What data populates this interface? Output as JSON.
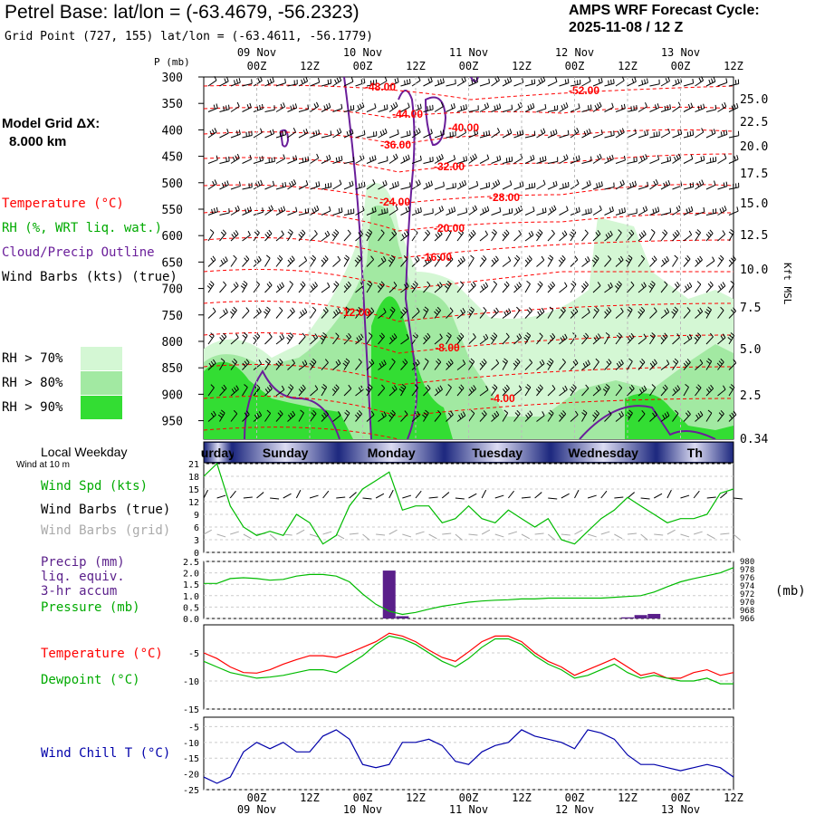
{
  "header": {
    "title": "Petrel Base:  lat/lon = (-63.4679, -56.2323)",
    "grid_point": "Grid Point (727, 155) lat/lon = (-63.4611, -56.1779)",
    "cycle_line1": "AMPS WRF Forecast Cycle:",
    "cycle_line2": "2025-11-08 / 12  Z",
    "model_grid_line1": "Model Grid ΔX:",
    "model_grid_line2": "8.000 km"
  },
  "legend": {
    "temperature": "Temperature (°C)",
    "rh": "RH (%, WRT liq. wat.)",
    "cloud": "Cloud/Precip Outline",
    "wind": "Wind Barbs (kts) (true)",
    "rh70": "RH > 70%",
    "rh80": "RH > 80%",
    "rh90": "RH > 90%"
  },
  "colors": {
    "temperature": "#ff0000",
    "rh_label": "#00aa00",
    "cloud": "#6a1e9a",
    "rh70": "#d4f7d4",
    "rh80": "#a2e9a2",
    "rh90": "#33dd33",
    "wind_chill": "#0000aa",
    "pressure": "#00bb00",
    "precip": "#5a1f8a",
    "barbs_grid": "#aaaaaa",
    "day_band_dark": "#1f2a80",
    "day_band_light": "#dcdcf2"
  },
  "time_axis": {
    "top_date_labels": [
      "09 Nov",
      "10 Nov",
      "11 Nov",
      "12 Nov",
      "13 Nov"
    ],
    "hour_labels": [
      "00Z",
      "12Z",
      "00Z",
      "12Z",
      "00Z",
      "12Z",
      "00Z",
      "12Z",
      "00Z",
      "12Z"
    ],
    "bottom_date_labels": [
      "09 Nov",
      "10 Nov",
      "11 Nov",
      "12 Nov",
      "13 Nov"
    ],
    "weekday_title": "Local Weekday",
    "weekdays": [
      "urday",
      "Sunday",
      "Monday",
      "Tuesday",
      "Wednesday",
      "Th"
    ]
  },
  "panels": {
    "sounding": {
      "p_label": "P (mb)",
      "pressure_ticks": [
        "300",
        "350",
        "400",
        "450",
        "500",
        "550",
        "600",
        "650",
        "700",
        "750",
        "800",
        "850",
        "900",
        "950"
      ],
      "kft_ticks": [
        "25.0",
        "22.5",
        "20.0",
        "17.5",
        "15.0",
        "12.5",
        "10.0",
        "7.5",
        "5.0",
        "2.5",
        "0.34"
      ],
      "kft_label": "Kft MSL",
      "temp_labels": [
        "-48.00",
        "-52.00",
        "-44.00",
        "-40.00",
        "-36.00",
        "-32.00",
        "-28.00",
        "-24.00",
        "-20.00",
        "-16.00",
        "-12.00",
        "-8.00",
        "-4.00"
      ]
    },
    "wind": {
      "top_label": "Wind at 10 m",
      "spd_label": "Wind Spd (kts)",
      "barbs_true": "Wind Barbs (true)",
      "barbs_grid": "Wind Barbs (grid)",
      "y_ticks": [
        "21",
        "18",
        "15",
        "12",
        "9",
        "6",
        "3",
        "0"
      ]
    },
    "precip": {
      "label1": "Precip (mm)",
      "label2": "liq. equiv.",
      "label3": "3-hr accum",
      "pressure_label": "Pressure (mb)",
      "y_ticks": [
        "2.5",
        "2.0",
        "1.5",
        "1.0",
        "0.5",
        "0.0"
      ],
      "right_ticks": [
        "980",
        "978",
        "976",
        "974",
        "972",
        "970",
        "968",
        "966"
      ],
      "right_unit": "(mb)"
    },
    "temp": {
      "temp_label": "Temperature (°C)",
      "dew_label": "Dewpoint (°C)",
      "y_ticks": [
        "-5",
        "-10",
        "-15"
      ]
    },
    "windchill": {
      "label": "Wind Chill T (°C)",
      "y_ticks": [
        "-5",
        "-10",
        "-15",
        "-20",
        "-25"
      ]
    }
  },
  "chart_data": [
    {
      "type": "line",
      "panel": "wind_speed",
      "x_unit": "hours since 2025-11-08 12Z",
      "x": [
        0,
        3,
        6,
        9,
        12,
        15,
        18,
        21,
        24,
        27,
        30,
        33,
        36,
        39,
        42,
        45,
        48,
        51,
        54,
        57,
        60,
        63,
        66,
        69,
        72,
        75,
        78,
        81,
        84,
        87,
        90,
        93,
        96,
        99,
        102,
        105,
        108,
        111,
        114,
        117,
        120
      ],
      "series": [
        {
          "name": "Wind Spd (kts)",
          "values": [
            18,
            21,
            11,
            6,
            4,
            5,
            4,
            9,
            7,
            2,
            4,
            11,
            15,
            17,
            19,
            10,
            11,
            11,
            7,
            8,
            11,
            8,
            7,
            10,
            8,
            6,
            8,
            3,
            2,
            5,
            8,
            10,
            13,
            11,
            9,
            7,
            8,
            8,
            9,
            14,
            15
          ]
        }
      ],
      "ylim": [
        0,
        21
      ]
    },
    {
      "type": "bar",
      "panel": "precip",
      "x": [
        0,
        3,
        6,
        9,
        12,
        15,
        18,
        21,
        24,
        27,
        30,
        33,
        36,
        39,
        42,
        45,
        48,
        51,
        54,
        57,
        60,
        63,
        66,
        69,
        72,
        75,
        78,
        81,
        84,
        87,
        90,
        93,
        96,
        99,
        102,
        105,
        108,
        111,
        114,
        117,
        120
      ],
      "series": [
        {
          "name": "Precip (mm)",
          "values": [
            0,
            0,
            0,
            0,
            0,
            0,
            0,
            0,
            0,
            0,
            0,
            0,
            0,
            0,
            2.1,
            0.1,
            0,
            0,
            0,
            0,
            0,
            0,
            0,
            0,
            0,
            0,
            0,
            0,
            0,
            0,
            0,
            0,
            0.05,
            0.15,
            0.2,
            0,
            0,
            0,
            0,
            0,
            0
          ]
        }
      ],
      "ylim": [
        0,
        2.5
      ]
    },
    {
      "type": "line",
      "panel": "pressure",
      "x": [
        0,
        3,
        6,
        9,
        12,
        15,
        18,
        21,
        24,
        27,
        30,
        33,
        36,
        39,
        42,
        45,
        48,
        51,
        54,
        57,
        60,
        63,
        66,
        69,
        72,
        75,
        78,
        81,
        84,
        87,
        90,
        93,
        96,
        99,
        102,
        105,
        108,
        111,
        114,
        117,
        120
      ],
      "series": [
        {
          "name": "Pressure (mb)",
          "values": [
            974.6,
            974.6,
            975.8,
            976.0,
            975.8,
            975.4,
            975.6,
            976.4,
            976.8,
            976.8,
            976.4,
            975.0,
            972.0,
            969.5,
            967.8,
            967.0,
            967.5,
            968.3,
            969.0,
            969.5,
            970.0,
            970.3,
            970.5,
            970.6,
            970.8,
            970.8,
            971.0,
            971.0,
            971.0,
            971.0,
            971.0,
            971.2,
            971.4,
            971.6,
            972.5,
            973.8,
            975.0,
            975.8,
            976.5,
            977.2,
            978.5
          ]
        }
      ],
      "ylim": [
        966,
        980
      ]
    },
    {
      "type": "line",
      "panel": "temperature",
      "x": [
        0,
        3,
        6,
        9,
        12,
        15,
        18,
        21,
        24,
        27,
        30,
        33,
        36,
        39,
        42,
        45,
        48,
        51,
        54,
        57,
        60,
        63,
        66,
        69,
        72,
        75,
        78,
        81,
        84,
        87,
        90,
        93,
        96,
        99,
        102,
        105,
        108,
        111,
        114,
        117,
        120
      ],
      "series": [
        {
          "name": "Temperature (°C)",
          "values": [
            -5.0,
            -6.0,
            -7.5,
            -8.5,
            -8.6,
            -8.0,
            -7.0,
            -6.2,
            -5.5,
            -5.5,
            -5.8,
            -5.0,
            -4.0,
            -3.0,
            -1.5,
            -2.0,
            -3.0,
            -4.5,
            -5.8,
            -6.5,
            -4.8,
            -3.0,
            -2.0,
            -2.0,
            -3.0,
            -5.0,
            -6.5,
            -7.5,
            -9.0,
            -8.0,
            -7.0,
            -6.0,
            -7.5,
            -9.0,
            -8.5,
            -9.5,
            -9.5,
            -8.5,
            -8.0,
            -9.0,
            -8.5
          ]
        },
        {
          "name": "Dewpoint (°C)",
          "values": [
            -6.5,
            -7.5,
            -8.5,
            -9.0,
            -9.5,
            -9.3,
            -9.0,
            -8.5,
            -8.0,
            -8.0,
            -8.5,
            -7.0,
            -5.5,
            -3.5,
            -2.0,
            -2.5,
            -3.5,
            -5.0,
            -6.5,
            -7.5,
            -6.0,
            -4.0,
            -2.5,
            -2.5,
            -3.5,
            -5.5,
            -7.0,
            -8.0,
            -9.5,
            -9.0,
            -8.0,
            -7.0,
            -8.5,
            -9.5,
            -9.0,
            -9.5,
            -10.0,
            -10.0,
            -9.5,
            -10.5,
            -10.5
          ]
        }
      ],
      "ylim": [
        -15,
        0
      ]
    },
    {
      "type": "line",
      "panel": "wind_chill",
      "x": [
        0,
        3,
        6,
        9,
        12,
        15,
        18,
        21,
        24,
        27,
        30,
        33,
        36,
        39,
        42,
        45,
        48,
        51,
        54,
        57,
        60,
        63,
        66,
        69,
        72,
        75,
        78,
        81,
        84,
        87,
        90,
        93,
        96,
        99,
        102,
        105,
        108,
        111,
        114,
        117,
        120
      ],
      "series": [
        {
          "name": "Wind Chill T (°C)",
          "values": [
            -21,
            -23,
            -21,
            -13,
            -10,
            -12,
            -10,
            -13,
            -13,
            -8,
            -6,
            -9,
            -17,
            -18,
            -17,
            -10,
            -10,
            -9,
            -11,
            -16,
            -17,
            -13,
            -11,
            -10,
            -6,
            -8,
            -9,
            -10,
            -12,
            -6,
            -7,
            -9,
            -14,
            -17,
            -17,
            -18,
            -19,
            -18,
            -17,
            -18,
            -21
          ]
        }
      ],
      "ylim": [
        -25,
        -2
      ]
    }
  ]
}
